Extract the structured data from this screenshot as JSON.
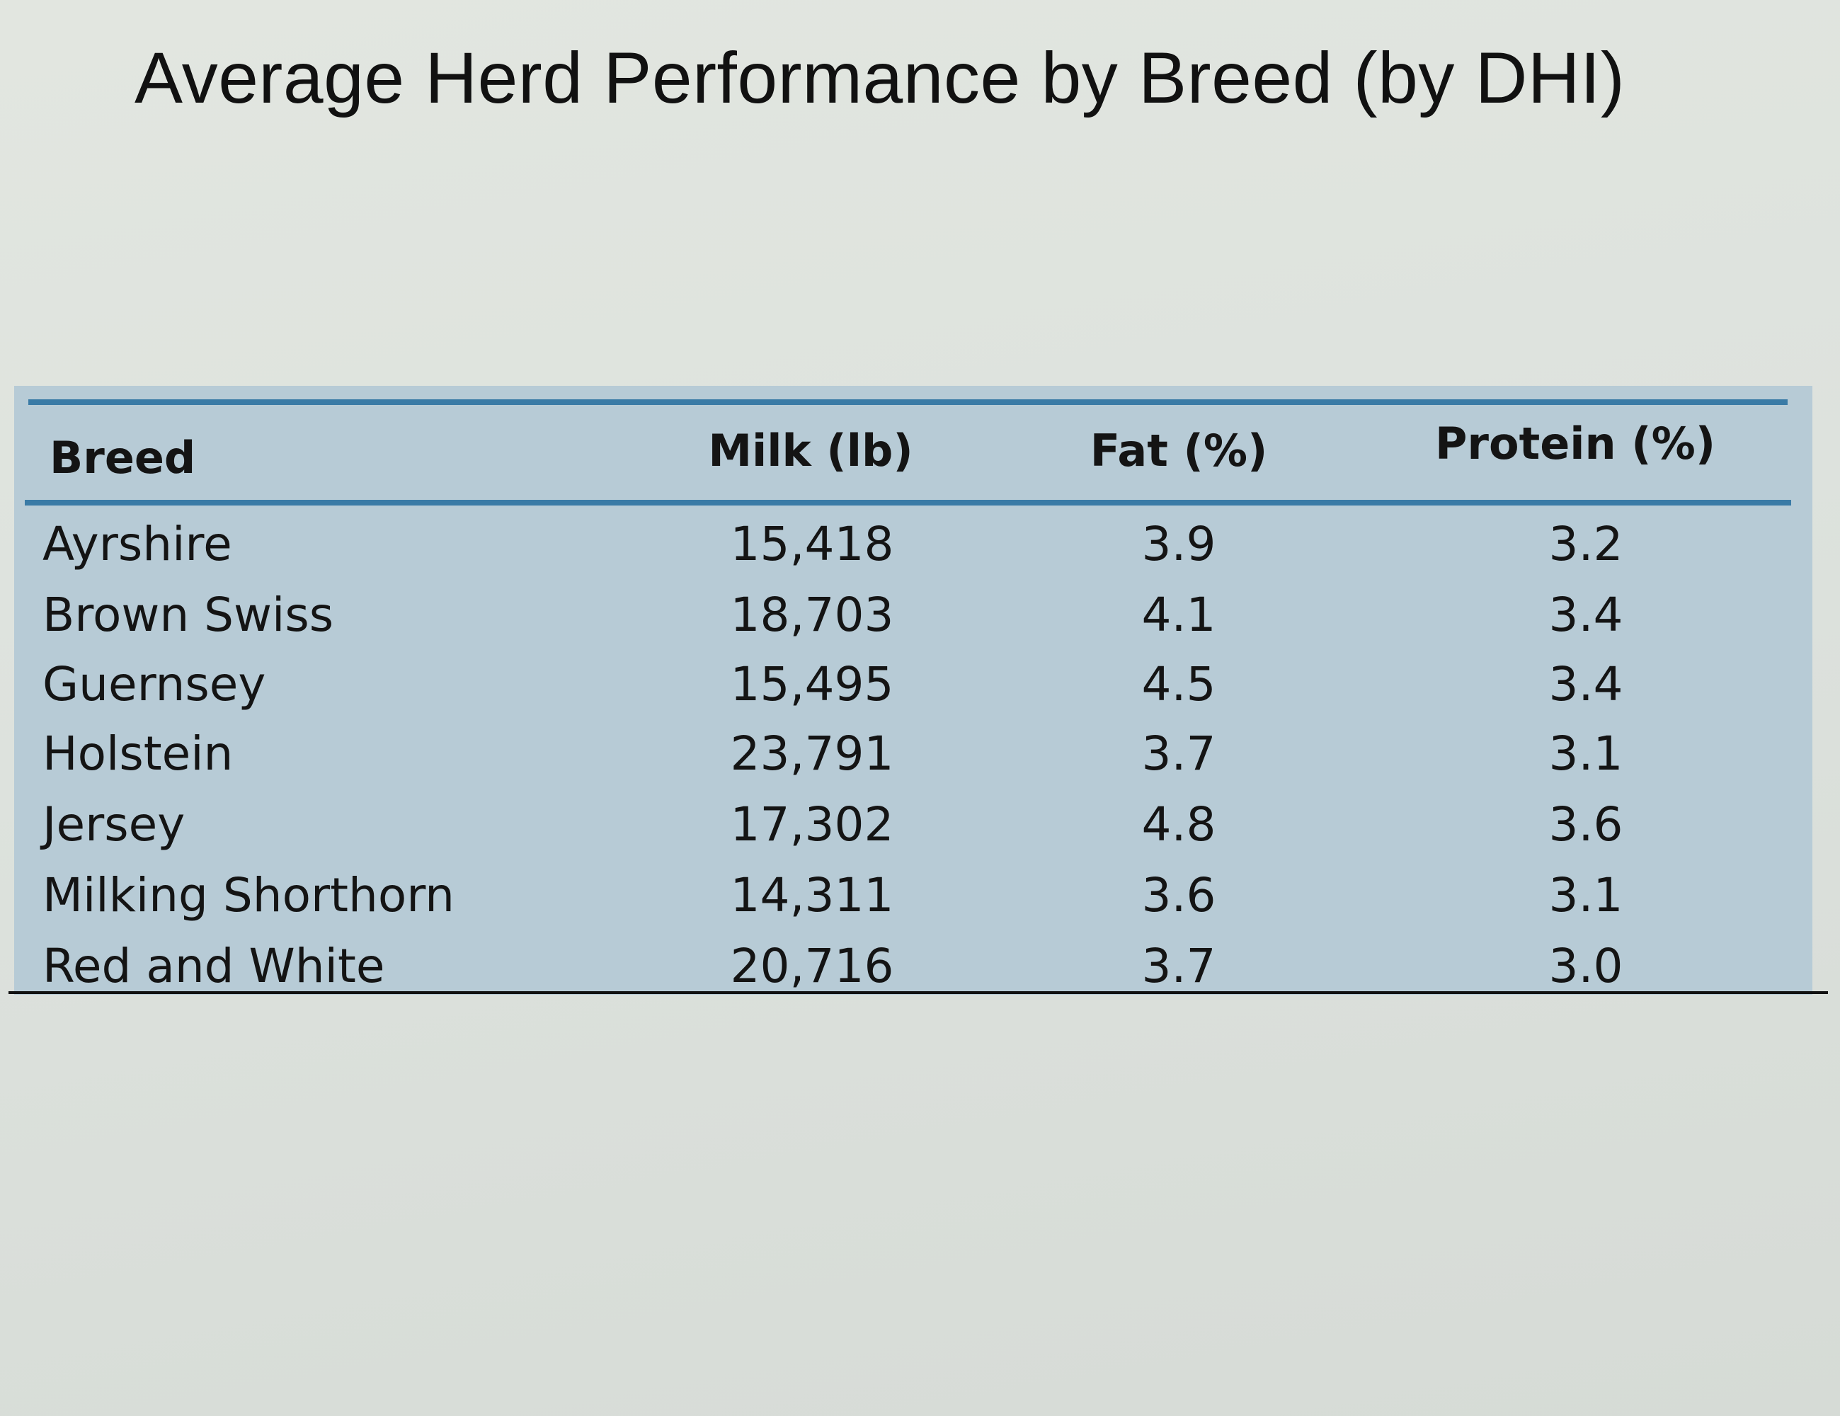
{
  "title": "Average Herd Performance by Breed (by DHI)",
  "table": {
    "headers": {
      "breed": "Breed",
      "milk": "Milk (lb)",
      "fat": "Fat (%)",
      "protein": "Protein (%)"
    },
    "rows": [
      {
        "breed": "Ayrshire",
        "milk": "15,418",
        "fat": "3.9",
        "protein": "3.2"
      },
      {
        "breed": "Brown Swiss",
        "milk": "18,703",
        "fat": "4.1",
        "protein": "3.4"
      },
      {
        "breed": "Guernsey",
        "milk": "15,495",
        "fat": "4.5",
        "protein": "3.4"
      },
      {
        "breed": "Holstein",
        "milk": "23,791",
        "fat": "3.7",
        "protein": "3.1"
      },
      {
        "breed": "Jersey",
        "milk": "17,302",
        "fat": "4.8",
        "protein": "3.6"
      },
      {
        "breed": "Milking Shorthorn",
        "milk": "14,311",
        "fat": "3.6",
        "protein": "3.1"
      },
      {
        "breed": "Red and White",
        "milk": "20,716",
        "fat": "3.7",
        "protein": "3.0"
      }
    ]
  },
  "colors": {
    "panel": "#b7cbd6",
    "rule_accent": "#3a7ba6",
    "paper": "#dde2dd"
  }
}
